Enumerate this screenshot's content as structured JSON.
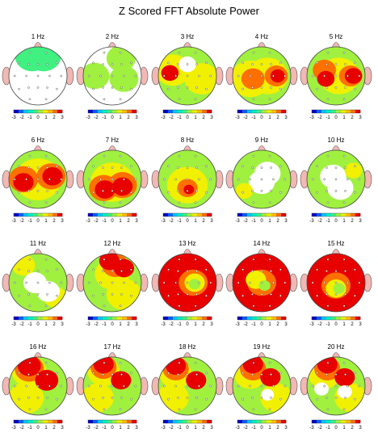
{
  "title": "Z Scored FFT Absolute Power",
  "colorbar": {
    "tick_labels": [
      "-3",
      "-2",
      "-1",
      "0",
      "1",
      "2",
      "3"
    ],
    "colors": [
      "#0000c8",
      "#0060ff",
      "#00c8ff",
      "#00f0c0",
      "#40f080",
      "#a0f040",
      "#f0f000",
      "#ffc000",
      "#ff7000",
      "#e80000"
    ]
  },
  "maps": [
    {
      "label": "1 Hz",
      "base": "#ffffff",
      "blobs": [
        {
          "c": "#40f080",
          "r": 0.6,
          "spots": [
            [
              -0.2,
              -0.7
            ],
            [
              0.2,
              -0.7
            ]
          ]
        }
      ]
    },
    {
      "label": "2 Hz",
      "base": "#ffffff",
      "blobs": [
        {
          "c": "#a0f040",
          "r": 0.5,
          "spots": [
            [
              0.3,
              -0.6
            ],
            [
              -0.6,
              0.0
            ],
            [
              0.4,
              0.1
            ]
          ]
        }
      ]
    },
    {
      "label": "3 Hz",
      "base": "#a0f040",
      "blobs": [
        {
          "c": "#f0f000",
          "r": 0.6,
          "spots": [
            [
              -0.5,
              -0.2
            ],
            [
              0.5,
              0.1
            ]
          ]
        },
        {
          "c": "#e80000",
          "r": 0.3,
          "spots": [
            [
              -0.6,
              -0.1
            ]
          ]
        },
        {
          "c": "#ffffff",
          "r": 0.3,
          "spots": [
            [
              0.0,
              -0.4
            ]
          ]
        }
      ]
    },
    {
      "label": "4 Hz",
      "base": "#a0f040",
      "blobs": [
        {
          "c": "#f0f000",
          "r": 0.7,
          "spots": [
            [
              0.2,
              0.0
            ],
            [
              -0.4,
              0.1
            ]
          ]
        },
        {
          "c": "#ff7000",
          "r": 0.4,
          "spots": [
            [
              0.5,
              0.0
            ],
            [
              -0.3,
              0.1
            ]
          ]
        },
        {
          "c": "#e80000",
          "r": 0.25,
          "spots": [
            [
              0.55,
              0.0
            ]
          ]
        }
      ]
    },
    {
      "label": "5 Hz",
      "base": "#a0f040",
      "blobs": [
        {
          "c": "#f0f000",
          "r": 0.7,
          "spots": [
            [
              0.1,
              0.0
            ]
          ]
        },
        {
          "c": "#ff7000",
          "r": 0.4,
          "spots": [
            [
              0.5,
              0.0
            ],
            [
              -0.4,
              -0.2
            ]
          ]
        },
        {
          "c": "#e80000",
          "r": 0.3,
          "spots": [
            [
              0.6,
              0.0
            ],
            [
              -0.35,
              0.1
            ]
          ]
        }
      ]
    },
    {
      "label": "6 Hz",
      "base": "#a0f040",
      "blobs": [
        {
          "c": "#f0f000",
          "r": 0.8,
          "spots": [
            [
              0.0,
              0.0
            ]
          ]
        },
        {
          "c": "#ff7000",
          "r": 0.5,
          "spots": [
            [
              -0.5,
              0.0
            ],
            [
              0.45,
              -0.1
            ]
          ]
        },
        {
          "c": "#e80000",
          "r": 0.35,
          "spots": [
            [
              -0.5,
              0.1
            ],
            [
              0.5,
              -0.1
            ]
          ]
        }
      ]
    },
    {
      "label": "7 Hz",
      "base": "#a0f040",
      "blobs": [
        {
          "c": "#f0f000",
          "r": 0.75,
          "spots": [
            [
              0.0,
              0.1
            ]
          ]
        },
        {
          "c": "#ff7000",
          "r": 0.5,
          "spots": [
            [
              -0.3,
              0.3
            ],
            [
              0.35,
              0.2
            ]
          ]
        },
        {
          "c": "#e80000",
          "r": 0.35,
          "spots": [
            [
              -0.25,
              0.35
            ],
            [
              0.35,
              0.25
            ]
          ]
        }
      ]
    },
    {
      "label": "8 Hz",
      "base": "#a0f040",
      "blobs": [
        {
          "c": "#f0f000",
          "r": 0.7,
          "spots": [
            [
              0.0,
              0.2
            ]
          ]
        },
        {
          "c": "#ff7000",
          "r": 0.35,
          "spots": [
            [
              0.0,
              0.3
            ]
          ]
        },
        {
          "c": "#e80000",
          "r": 0.18,
          "spots": [
            [
              0.05,
              0.35
            ]
          ]
        }
      ]
    },
    {
      "label": "9 Hz",
      "base": "#a0f040",
      "blobs": [
        {
          "c": "#ffffff",
          "r": 0.45,
          "spots": [
            [
              0.2,
              -0.2
            ],
            [
              0.0,
              0.1
            ]
          ]
        },
        {
          "c": "#f0f000",
          "r": 0.3,
          "spots": [
            [
              -0.6,
              0.4
            ]
          ]
        }
      ]
    },
    {
      "label": "10 Hz",
      "base": "#a0f040",
      "blobs": [
        {
          "c": "#ffffff",
          "r": 0.45,
          "spots": [
            [
              -0.1,
              -0.1
            ],
            [
              0.15,
              0.3
            ]
          ]
        },
        {
          "c": "#f0f000",
          "r": 0.3,
          "spots": [
            [
              0.6,
              -0.3
            ]
          ]
        }
      ]
    },
    {
      "label": "11 Hz",
      "base": "#a0f040",
      "blobs": [
        {
          "c": "#f0f000",
          "r": 0.4,
          "spots": [
            [
              -0.5,
              -0.6
            ],
            [
              0.6,
              0.5
            ]
          ]
        },
        {
          "c": "#ffffff",
          "r": 0.4,
          "spots": [
            [
              -0.1,
              0.0
            ],
            [
              0.35,
              0.3
            ]
          ]
        }
      ]
    },
    {
      "label": "12 Hz",
      "base": "#a0f040",
      "blobs": [
        {
          "c": "#f0f000",
          "r": 0.6,
          "spots": [
            [
              0.0,
              -0.3
            ],
            [
              0.4,
              0.4
            ]
          ]
        },
        {
          "c": "#ff7000",
          "r": 0.45,
          "spots": [
            [
              0.1,
              -0.6
            ]
          ]
        },
        {
          "c": "#e80000",
          "r": 0.35,
          "spots": [
            [
              -0.1,
              -0.75
            ],
            [
              0.4,
              -0.5
            ]
          ]
        }
      ]
    },
    {
      "label": "13 Hz",
      "base": "#e80000",
      "blobs": [
        {
          "c": "#ff7000",
          "r": 0.5,
          "spots": [
            [
              0.2,
              0.0
            ]
          ]
        },
        {
          "c": "#f0f000",
          "r": 0.35,
          "spots": [
            [
              0.25,
              0.0
            ]
          ]
        },
        {
          "c": "#a0f040",
          "r": 0.2,
          "spots": [
            [
              0.25,
              0.05
            ]
          ]
        }
      ]
    },
    {
      "label": "14 Hz",
      "base": "#e80000",
      "blobs": [
        {
          "c": "#ff7000",
          "r": 0.5,
          "spots": [
            [
              0.0,
              0.0
            ]
          ]
        },
        {
          "c": "#f0f000",
          "r": 0.35,
          "spots": [
            [
              -0.2,
              -0.1
            ]
          ]
        },
        {
          "c": "#a0f040",
          "r": 0.2,
          "spots": [
            [
              0.1,
              0.1
            ]
          ]
        }
      ]
    },
    {
      "label": "15 Hz",
      "base": "#e80000",
      "blobs": [
        {
          "c": "#ff7000",
          "r": 0.5,
          "spots": [
            [
              0.0,
              0.1
            ]
          ]
        },
        {
          "c": "#f0f000",
          "r": 0.35,
          "spots": [
            [
              0.0,
              0.2
            ]
          ]
        },
        {
          "c": "#a0f040",
          "r": 0.2,
          "spots": [
            [
              0.1,
              0.2
            ]
          ]
        }
      ]
    },
    {
      "label": "16 Hz",
      "base": "#a0f040",
      "blobs": [
        {
          "c": "#f0f000",
          "r": 0.6,
          "spots": [
            [
              -0.3,
              -0.5
            ],
            [
              -0.4,
              0.4
            ]
          ]
        },
        {
          "c": "#ff7000",
          "r": 0.5,
          "spots": [
            [
              -0.3,
              -0.6
            ]
          ]
        },
        {
          "c": "#e80000",
          "r": 0.4,
          "spots": [
            [
              -0.3,
              -0.7
            ],
            [
              0.3,
              -0.2
            ]
          ]
        }
      ]
    },
    {
      "label": "17 Hz",
      "base": "#a0f040",
      "blobs": [
        {
          "c": "#f0f000",
          "r": 0.55,
          "spots": [
            [
              -0.3,
              -0.5
            ],
            [
              -0.5,
              0.4
            ]
          ]
        },
        {
          "c": "#ff7000",
          "r": 0.45,
          "spots": [
            [
              -0.3,
              -0.65
            ]
          ]
        },
        {
          "c": "#e80000",
          "r": 0.35,
          "spots": [
            [
              -0.3,
              -0.75
            ],
            [
              0.3,
              -0.2
            ]
          ]
        }
      ]
    },
    {
      "label": "18 Hz",
      "base": "#a0f040",
      "blobs": [
        {
          "c": "#f0f000",
          "r": 0.55,
          "spots": [
            [
              -0.4,
              -0.4
            ],
            [
              -0.5,
              0.4
            ]
          ]
        },
        {
          "c": "#ff7000",
          "r": 0.45,
          "spots": [
            [
              -0.4,
              -0.6
            ]
          ]
        },
        {
          "c": "#e80000",
          "r": 0.35,
          "spots": [
            [
              -0.4,
              -0.7
            ],
            [
              0.3,
              -0.2
            ]
          ]
        }
      ]
    },
    {
      "label": "19 Hz",
      "base": "#a0f040",
      "blobs": [
        {
          "c": "#f0f000",
          "r": 0.55,
          "spots": [
            [
              -0.4,
              -0.4
            ],
            [
              0.5,
              0.4
            ]
          ]
        },
        {
          "c": "#ff7000",
          "r": 0.45,
          "spots": [
            [
              -0.3,
              -0.6
            ]
          ]
        },
        {
          "c": "#e80000",
          "r": 0.35,
          "spots": [
            [
              -0.3,
              -0.75
            ],
            [
              0.3,
              -0.3
            ]
          ]
        },
        {
          "c": "#ffffff",
          "r": 0.22,
          "spots": [
            [
              0.2,
              0.3
            ]
          ]
        }
      ]
    },
    {
      "label": "20 Hz",
      "base": "#a0f040",
      "blobs": [
        {
          "c": "#f0f000",
          "r": 0.55,
          "spots": [
            [
              -0.4,
              -0.4
            ],
            [
              0.5,
              0.4
            ]
          ]
        },
        {
          "c": "#ff7000",
          "r": 0.45,
          "spots": [
            [
              -0.3,
              -0.6
            ]
          ]
        },
        {
          "c": "#e80000",
          "r": 0.35,
          "spots": [
            [
              -0.3,
              -0.75
            ],
            [
              0.3,
              -0.3
            ]
          ]
        },
        {
          "c": "#ffffff",
          "r": 0.25,
          "spots": [
            [
              -0.5,
              0.1
            ],
            [
              0.3,
              0.2
            ]
          ]
        }
      ]
    }
  ]
}
